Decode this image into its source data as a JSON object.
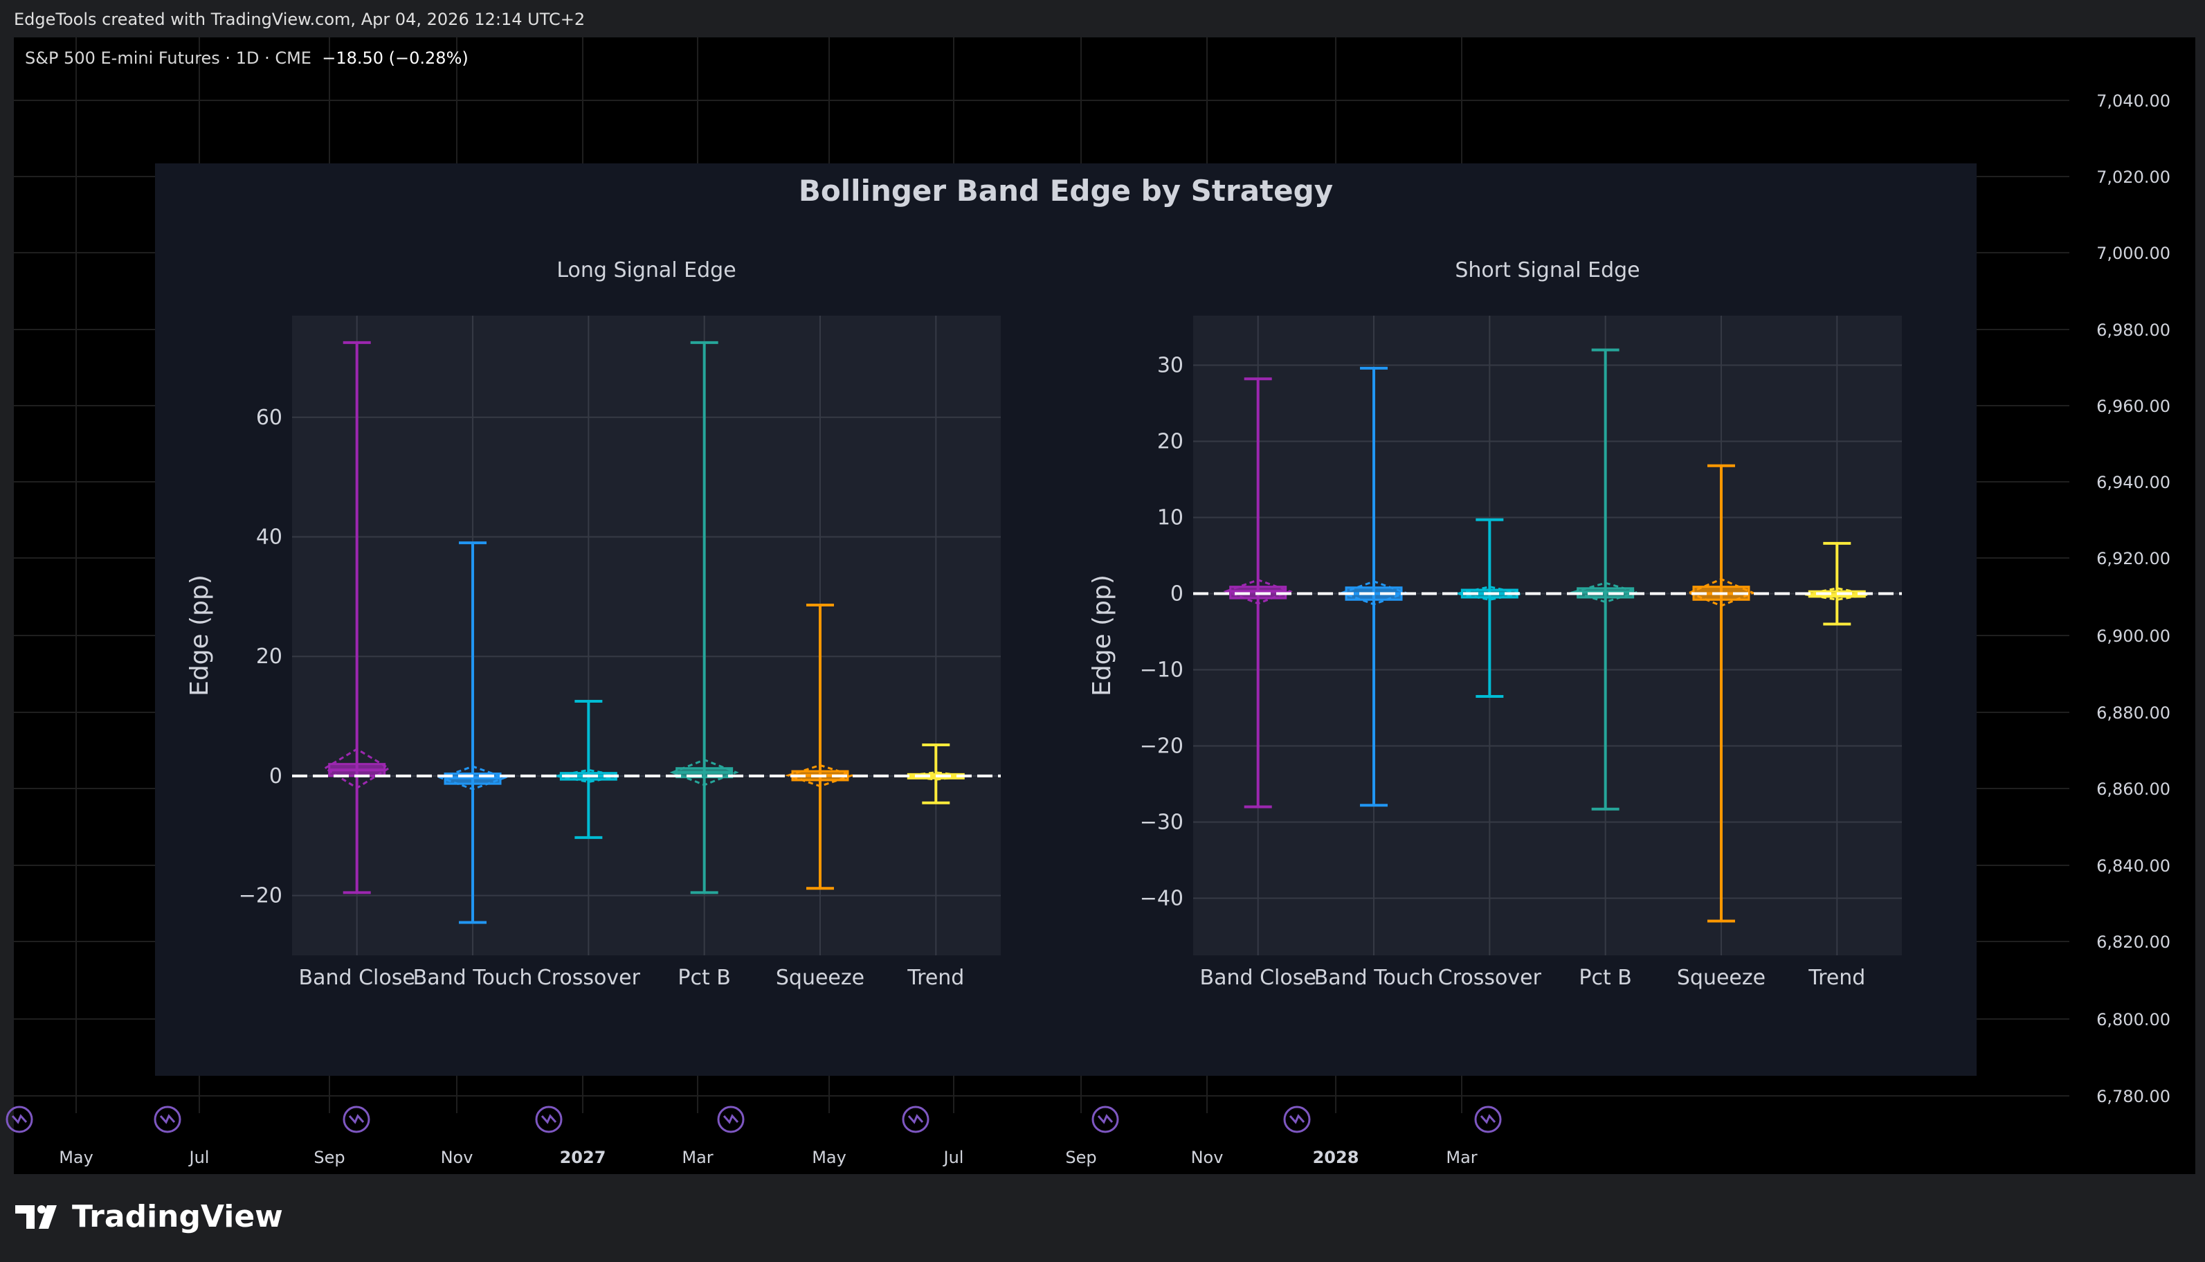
{
  "header": {
    "attribution": "EdgeTools created with TradingView.com, Apr 04, 2026 12:14 UTC+2",
    "symbol": "S&P 500 E-mini Futures · 1D · CME",
    "change": "−18.50 (−0.28%)"
  },
  "price_axis": [
    "7,040.00",
    "7,020.00",
    "7,000.00",
    "6,980.00",
    "6,960.00",
    "6,940.00",
    "6,920.00",
    "6,900.00",
    "6,880.00",
    "6,860.00",
    "6,840.00",
    "6,820.00",
    "6,800.00",
    "6,780.00"
  ],
  "time_axis": [
    {
      "label": "May",
      "bold": false
    },
    {
      "label": "Jul",
      "bold": false
    },
    {
      "label": "Sep",
      "bold": false
    },
    {
      "label": "Nov",
      "bold": false
    },
    {
      "label": "2027",
      "bold": true
    },
    {
      "label": "Mar",
      "bold": false
    },
    {
      "label": "May",
      "bold": false
    },
    {
      "label": "Jul",
      "bold": false
    },
    {
      "label": "Sep",
      "bold": false
    },
    {
      "label": "Nov",
      "bold": false
    },
    {
      "label": "2028",
      "bold": true
    },
    {
      "label": "Mar",
      "bold": false
    }
  ],
  "footer": {
    "brand": "TradingView"
  },
  "colors": {
    "Band Close": "#9c27b0",
    "Band Touch": "#2196f3",
    "Crossover": "#00bcd4",
    "Pct B": "#26a69a",
    "Squeeze": "#ff9800",
    "Trend": "#ffeb3b"
  },
  "chart_data": [
    {
      "type": "box",
      "suptitle": "Bollinger Band Edge by Strategy",
      "title": "Long Signal Edge",
      "ylabel": "Edge (pp)",
      "xlabel": "",
      "ylim": [
        -30,
        77
      ],
      "yticks": [
        -20,
        0,
        20,
        40,
        60
      ],
      "grid": true,
      "reference_line": 0,
      "categories": [
        "Band Close",
        "Band Touch",
        "Crossover",
        "Pct B",
        "Squeeze",
        "Trend"
      ],
      "series": [
        {
          "name": "Band Close",
          "min": -19.5,
          "q1": 0.0,
          "median": 1.0,
          "q3": 2.0,
          "max": 72.5,
          "mean": 1.3,
          "ci_low": -2.0,
          "ci_high": 4.5
        },
        {
          "name": "Band Touch",
          "min": -24.5,
          "q1": -1.3,
          "median": -0.3,
          "q3": 0.4,
          "max": 39.0,
          "mean": -0.3,
          "ci_low": -2.2,
          "ci_high": 1.6
        },
        {
          "name": "Crossover",
          "min": -10.3,
          "q1": -0.6,
          "median": 0.0,
          "q3": 0.5,
          "max": 12.5,
          "mean": 0.0,
          "ci_low": -1.0,
          "ci_high": 1.0
        },
        {
          "name": "Pct B",
          "min": -19.5,
          "q1": -0.2,
          "median": 0.6,
          "q3": 1.3,
          "max": 72.5,
          "mean": 0.6,
          "ci_low": -1.5,
          "ci_high": 2.7
        },
        {
          "name": "Squeeze",
          "min": -18.8,
          "q1": -0.7,
          "median": 0.1,
          "q3": 0.8,
          "max": 28.6,
          "mean": 0.1,
          "ci_low": -1.7,
          "ci_high": 1.8
        },
        {
          "name": "Trend",
          "min": -4.5,
          "q1": -0.3,
          "median": 0.0,
          "q3": 0.3,
          "max": 5.2,
          "mean": 0.0,
          "ci_low": -0.6,
          "ci_high": 0.6
        }
      ]
    },
    {
      "type": "box",
      "title": "Short Signal Edge",
      "ylabel": "Edge (pp)",
      "xlabel": "",
      "ylim": [
        -47.5,
        36.5
      ],
      "yticks": [
        -40,
        -30,
        -20,
        -10,
        0,
        10,
        20,
        30
      ],
      "grid": true,
      "reference_line": 0,
      "categories": [
        "Band Close",
        "Band Touch",
        "Crossover",
        "Pct B",
        "Squeeze",
        "Trend"
      ],
      "series": [
        {
          "name": "Band Close",
          "min": -28.0,
          "q1": -0.6,
          "median": 0.3,
          "q3": 0.9,
          "max": 28.2,
          "mean": 0.3,
          "ci_low": -1.3,
          "ci_high": 1.8
        },
        {
          "name": "Band Touch",
          "min": -27.8,
          "q1": -0.8,
          "median": 0.0,
          "q3": 0.8,
          "max": 29.6,
          "mean": 0.1,
          "ci_low": -1.4,
          "ci_high": 1.6
        },
        {
          "name": "Crossover",
          "min": -13.5,
          "q1": -0.5,
          "median": 0.0,
          "q3": 0.5,
          "max": 9.7,
          "mean": 0.0,
          "ci_low": -0.8,
          "ci_high": 0.9
        },
        {
          "name": "Pct B",
          "min": -28.3,
          "q1": -0.5,
          "median": 0.2,
          "q3": 0.7,
          "max": 32.0,
          "mean": 0.2,
          "ci_low": -1.1,
          "ci_high": 1.4
        },
        {
          "name": "Squeeze",
          "min": -43.0,
          "q1": -0.8,
          "median": 0.0,
          "q3": 0.9,
          "max": 16.8,
          "mean": 0.1,
          "ci_low": -1.6,
          "ci_high": 1.9
        },
        {
          "name": "Trend",
          "min": -4.0,
          "q1": -0.4,
          "median": -0.1,
          "q3": 0.3,
          "max": 6.6,
          "mean": -0.1,
          "ci_low": -0.8,
          "ci_high": 0.7
        }
      ]
    }
  ]
}
